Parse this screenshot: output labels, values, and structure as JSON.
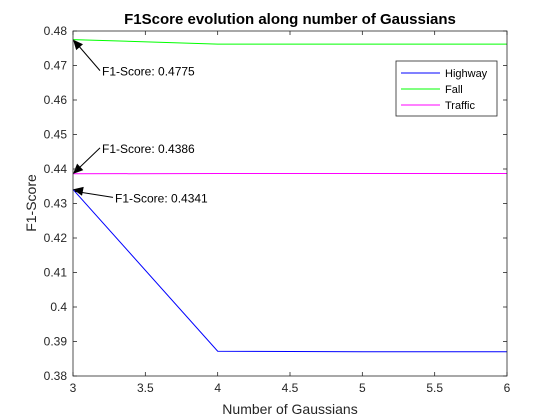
{
  "chart_data": {
    "type": "line",
    "title": "F1Score evolution along number of Gaussians",
    "xlabel": "Number of Gaussians",
    "ylabel": "F1-Score",
    "xlim": [
      3,
      6
    ],
    "ylim": [
      0.38,
      0.48
    ],
    "xticks": [
      3,
      3.5,
      4,
      4.5,
      5,
      5.5,
      6
    ],
    "xtick_labels": [
      "3",
      "3.5",
      "4",
      "4.5",
      "5",
      "5.5",
      "6"
    ],
    "yticks": [
      0.38,
      0.39,
      0.4,
      0.41,
      0.42,
      0.43,
      0.44,
      0.45,
      0.46,
      0.47,
      0.48
    ],
    "ytick_labels": [
      "0.38",
      "0.39",
      "0.4",
      "0.41",
      "0.42",
      "0.43",
      "0.44",
      "0.45",
      "0.46",
      "0.47",
      "0.48"
    ],
    "grid": false,
    "legend_position": "top-right",
    "series": [
      {
        "name": "Highway",
        "color": "#0000ff",
        "x": [
          3,
          4,
          5,
          6
        ],
        "y": [
          0.4341,
          0.3872,
          0.387,
          0.387
        ]
      },
      {
        "name": "Fall",
        "color": "#00ff00",
        "x": [
          3,
          4,
          5,
          6
        ],
        "y": [
          0.4775,
          0.4762,
          0.4762,
          0.4762
        ]
      },
      {
        "name": "Traffic",
        "color": "#ff00ff",
        "x": [
          3,
          4,
          5,
          6
        ],
        "y": [
          0.4386,
          0.4387,
          0.4387,
          0.4387
        ]
      }
    ],
    "annotations": [
      {
        "text": "F1-Score: 0.4775",
        "x": 3,
        "y": 0.4775
      },
      {
        "text": "F1-Score: 0.4386",
        "x": 3,
        "y": 0.4386
      },
      {
        "text": "F1-Score: 0.4341",
        "x": 3,
        "y": 0.4341
      }
    ]
  }
}
